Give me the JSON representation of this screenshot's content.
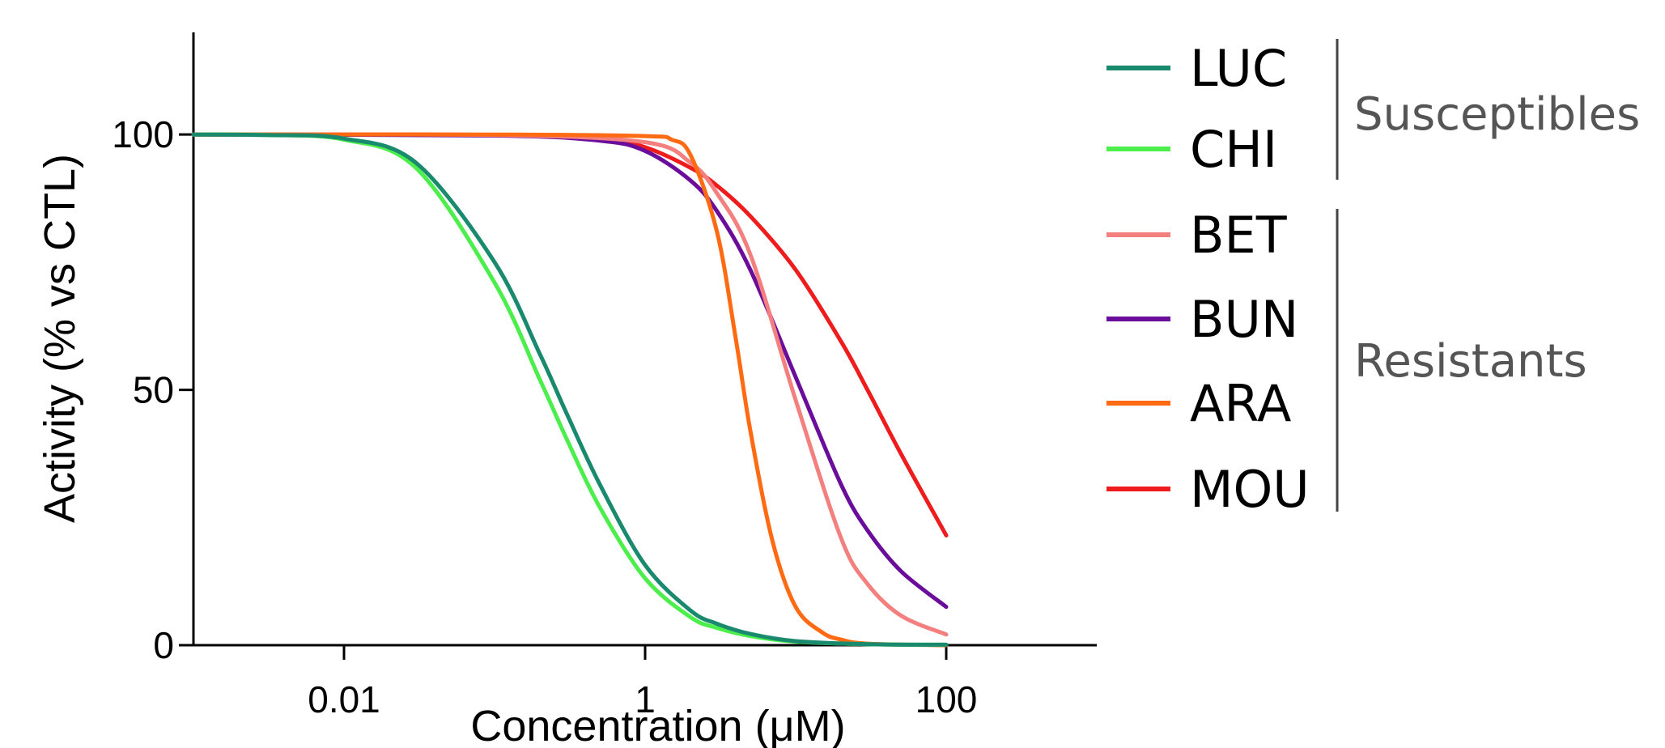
{
  "chart_data": {
    "type": "line",
    "title": "",
    "xlabel": "Concentration (μM)",
    "ylabel": "Activity (% vs CTL)",
    "x_scale": "log",
    "xlim": [
      0.001,
      1000
    ],
    "ylim": [
      0,
      120
    ],
    "x_ticks": [
      0.01,
      1,
      100
    ],
    "x_tick_labels": [
      "0.01",
      "1",
      "100"
    ],
    "y_ticks": [
      0,
      50,
      100
    ],
    "y_tick_labels": [
      "0",
      "50",
      "100"
    ],
    "grid": false,
    "legend_position": "right",
    "series": [
      {
        "name": "LUC",
        "color": "#1a8a6e",
        "group": "Susceptibles",
        "x": [
          0.001,
          0.003,
          0.01,
          0.03,
          0.1,
          0.2,
          0.3,
          0.5,
          1,
          2,
          3,
          5,
          10,
          30,
          100
        ],
        "y": [
          100,
          99.9,
          99.2,
          94.5,
          75,
          57,
          45.5,
          31.5,
          15.7,
          6.8,
          4.2,
          2.2,
          0.8,
          0.2,
          0.1
        ]
      },
      {
        "name": "CHI",
        "color": "#4cee4c",
        "group": "Susceptibles",
        "x": [
          0.001,
          0.003,
          0.01,
          0.03,
          0.1,
          0.2,
          0.3,
          0.5,
          1,
          2,
          3,
          5,
          10,
          30,
          100
        ],
        "y": [
          100,
          99.9,
          99,
          93.5,
          71,
          52,
          40.5,
          27,
          13.1,
          5.5,
          3.4,
          1.8,
          0.7,
          0.2,
          0.1
        ]
      },
      {
        "name": "BET",
        "color": "#f47f7f",
        "group": "Resistants",
        "x": [
          0.001,
          0.1,
          1,
          2,
          3,
          5,
          10,
          20,
          30,
          50,
          100
        ],
        "y": [
          100,
          99.9,
          98.5,
          94.5,
          88.5,
          76.5,
          48,
          21,
          12,
          5.8,
          2.1
        ]
      },
      {
        "name": "BUN",
        "color": "#6a0d9a",
        "group": "Resistants",
        "x": [
          0.001,
          0.1,
          0.5,
          1,
          2,
          3,
          5,
          10,
          20,
          30,
          50,
          100
        ],
        "y": [
          100,
          99.8,
          98.8,
          96.8,
          91,
          85,
          73.5,
          52.5,
          31.5,
          22.5,
          14.5,
          7.5
        ]
      },
      {
        "name": "ARA",
        "color": "#ff6a13",
        "group": "Resistants",
        "x": [
          0.001,
          0.1,
          1,
          1.5,
          2,
          3,
          4,
          5,
          7,
          10,
          15,
          20,
          30,
          100
        ],
        "y": [
          100,
          100,
          99.7,
          99,
          96,
          81,
          60,
          42,
          20.5,
          7.5,
          2.5,
          1.1,
          0.3,
          0
        ]
      },
      {
        "name": "MOU",
        "color": "#ee1c1c",
        "group": "Resistants",
        "x": [
          0.001,
          0.1,
          0.5,
          1,
          2,
          3,
          5,
          10,
          20,
          30,
          50,
          100
        ],
        "y": [
          100,
          99.9,
          99.4,
          97.5,
          93.5,
          90,
          84,
          73.5,
          59.5,
          50,
          37.5,
          21.5
        ]
      }
    ],
    "legend_groups": [
      {
        "label": "Susceptibles",
        "members": [
          "LUC",
          "CHI"
        ]
      },
      {
        "label": "Resistants",
        "members": [
          "BET",
          "BUN",
          "ARA",
          "MOU"
        ]
      }
    ]
  }
}
